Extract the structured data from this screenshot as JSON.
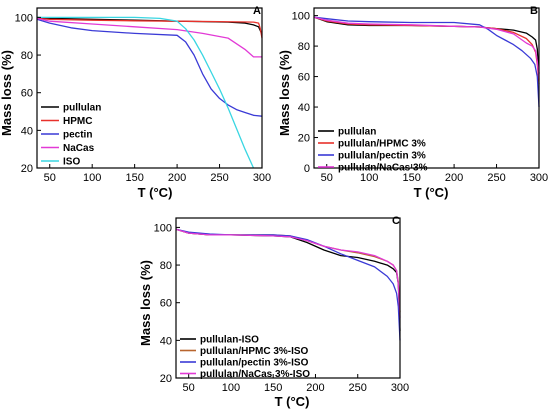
{
  "chart_data": [
    {
      "type": "line",
      "panel_label": "A",
      "xlabel": "T (°C)",
      "ylabel": "Mass loss (%)",
      "xlim": [
        35,
        300
      ],
      "ylim": [
        20,
        105
      ],
      "xticks": [
        50,
        100,
        150,
        200,
        250,
        300
      ],
      "yticks": [
        20,
        40,
        60,
        80,
        100
      ],
      "legend_position": "bottom-left",
      "series": [
        {
          "name": "pullulan",
          "color": "#000000",
          "x": [
            35,
            50,
            100,
            150,
            200,
            230,
            260,
            280,
            290,
            296,
            298,
            300
          ],
          "y": [
            100,
            99.5,
            99,
            98.5,
            98,
            97.8,
            97.5,
            97,
            96,
            95,
            93,
            91
          ]
        },
        {
          "name": "HPMC",
          "color": "#e8312b",
          "x": [
            35,
            50,
            100,
            150,
            200,
            250,
            290,
            296,
            298,
            300
          ],
          "y": [
            99.5,
            99,
            98.5,
            98.2,
            98,
            97.8,
            97.5,
            97,
            94,
            89
          ]
        },
        {
          "name": "pectin",
          "color": "#3a3ad6",
          "x": [
            35,
            50,
            75,
            100,
            150,
            200,
            210,
            220,
            230,
            240,
            250,
            260,
            270,
            280,
            290,
            300
          ],
          "y": [
            99,
            97,
            94.5,
            93,
            91.5,
            90.5,
            87,
            80,
            70,
            62,
            57,
            53.5,
            51,
            49.5,
            48,
            47.5
          ]
        },
        {
          "name": "NaCas",
          "color": "#e23ad6",
          "x": [
            35,
            50,
            100,
            150,
            200,
            230,
            260,
            280,
            290,
            300
          ],
          "y": [
            99.5,
            98,
            96.5,
            95,
            93.5,
            91.5,
            89,
            83,
            79,
            79
          ]
        },
        {
          "name": "ISO",
          "color": "#39d6e2",
          "x": [
            35,
            50,
            100,
            150,
            180,
            200,
            210,
            220,
            230,
            240,
            250,
            260,
            270,
            280,
            290
          ],
          "y": [
            100,
            100,
            100,
            100,
            99.5,
            98,
            94,
            88,
            80,
            71,
            62,
            52,
            41,
            30,
            20
          ]
        }
      ]
    },
    {
      "type": "line",
      "panel_label": "B",
      "xlabel": "T (°C)",
      "ylabel": "Mass loss (%)",
      "xlim": [
        35,
        300
      ],
      "ylim": [
        0,
        105
      ],
      "xticks": [
        50,
        100,
        150,
        200,
        250,
        300
      ],
      "yticks": [
        0,
        20,
        40,
        60,
        80,
        100
      ],
      "legend_position": "bottom-left",
      "series": [
        {
          "name": "pullulan",
          "color": "#000000",
          "x": [
            35,
            50,
            75,
            100,
            150,
            200,
            230,
            250,
            270,
            285,
            292,
            296,
            298,
            300
          ],
          "y": [
            99,
            96,
            94,
            93.5,
            93.5,
            93,
            92.5,
            91.5,
            90.5,
            88.5,
            86,
            84,
            78,
            62
          ]
        },
        {
          "name": "pullulan/HPMC 3%",
          "color": "#e8312b",
          "x": [
            35,
            50,
            75,
            100,
            150,
            200,
            230,
            250,
            270,
            285,
            292,
            296,
            298,
            300
          ],
          "y": [
            99,
            96.5,
            94.5,
            94,
            93.5,
            93,
            92.5,
            91.5,
            89,
            85,
            81,
            76,
            68,
            55
          ]
        },
        {
          "name": "pullulan/pectin 3%",
          "color": "#3a3ad6",
          "x": [
            35,
            50,
            75,
            100,
            150,
            200,
            230,
            240,
            250,
            260,
            270,
            280,
            290,
            295,
            298,
            300
          ],
          "y": [
            99,
            98,
            96.5,
            96,
            95.5,
            95.5,
            94,
            91,
            87,
            84,
            81,
            77,
            72,
            68,
            60,
            40
          ]
        },
        {
          "name": "pullulan/NaCas 3%",
          "color": "#e23ad6",
          "x": [
            35,
            50,
            75,
            100,
            150,
            200,
            230,
            250,
            270,
            285,
            292,
            296,
            298,
            300
          ],
          "y": [
            99,
            97,
            95,
            94.5,
            94,
            93,
            92.5,
            91,
            88,
            82,
            80,
            77,
            70,
            58
          ]
        }
      ]
    },
    {
      "type": "line",
      "panel_label": "C",
      "xlabel": "T (°C)",
      "ylabel": "Mass loss (%)",
      "xlim": [
        35,
        300
      ],
      "ylim": [
        20,
        105
      ],
      "xticks": [
        50,
        100,
        150,
        200,
        250,
        300
      ],
      "yticks": [
        20,
        40,
        60,
        80,
        100
      ],
      "legend_position": "bottom-left",
      "series": [
        {
          "name": "pullulan-ISO",
          "color": "#000000",
          "x": [
            35,
            50,
            75,
            100,
            150,
            170,
            190,
            210,
            230,
            250,
            270,
            285,
            292,
            296,
            298,
            300
          ],
          "y": [
            99,
            97,
            96,
            96,
            95.5,
            95,
            92,
            88,
            85,
            84,
            82,
            80,
            78,
            76,
            70,
            45
          ]
        },
        {
          "name": "pullulan/HPMC 3%-ISO",
          "color": "#b8652e",
          "x": [
            35,
            50,
            75,
            100,
            150,
            170,
            190,
            210,
            230,
            250,
            270,
            285,
            292,
            296,
            298,
            300
          ],
          "y": [
            99,
            97,
            96,
            96,
            96,
            95.5,
            93,
            90,
            88,
            86.5,
            84.5,
            82,
            80,
            77,
            71,
            55
          ]
        },
        {
          "name": "pullulan/pectin 3%-ISO",
          "color": "#3a3ad6",
          "x": [
            35,
            50,
            75,
            100,
            150,
            170,
            190,
            210,
            230,
            250,
            270,
            285,
            292,
            296,
            298,
            300
          ],
          "y": [
            99,
            97.5,
            96.5,
            96,
            96,
            95.5,
            93.5,
            90,
            86,
            82.5,
            79,
            74,
            70,
            65,
            58,
            40
          ]
        },
        {
          "name": "pullulan/NaCas 3%-ISO",
          "color": "#e23ad6",
          "x": [
            35,
            50,
            75,
            100,
            150,
            170,
            190,
            210,
            230,
            250,
            270,
            285,
            292,
            296,
            298,
            300
          ],
          "y": [
            99,
            97,
            96,
            96,
            95.5,
            95,
            93,
            90,
            88,
            87,
            85,
            82,
            80,
            77,
            70,
            52
          ]
        }
      ]
    }
  ]
}
